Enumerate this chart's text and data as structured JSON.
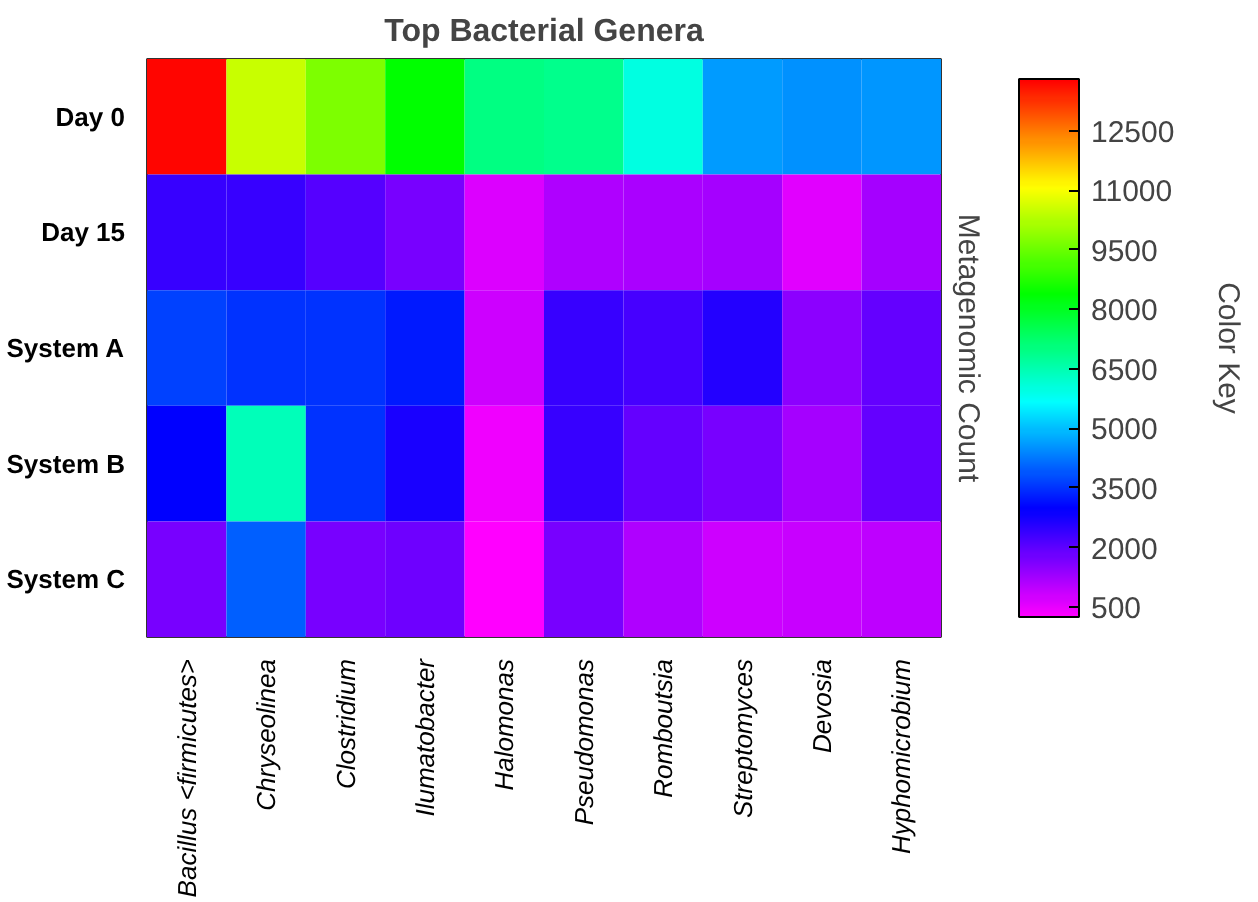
{
  "chart_data": {
    "type": "heatmap",
    "title": "Top Bacterial Genera",
    "ylabel": "Metagenomic Count",
    "clabel": "Color Key",
    "categories": [
      "Bacillus <firmicutes>",
      "Chryseolinea",
      "Clostridium",
      "Ilumatobacter",
      "Halomonas",
      "Pseudomonas",
      "Romboutsia",
      "Streptomyces",
      "Devosia",
      "Hyphomicrobium"
    ],
    "y_categories": [
      "Day 0",
      "Day 15",
      "System A",
      "System B",
      "System C"
    ],
    "cells": [
      [
        13700,
        10500,
        9700,
        8400,
        7000,
        6900,
        6000,
        4600,
        4500,
        4550
      ],
      [
        2400,
        2400,
        2050,
        1700,
        650,
        1100,
        1150,
        1250,
        600,
        1250
      ],
      [
        3650,
        3500,
        3500,
        3250,
        800,
        2400,
        2250,
        2600,
        1500,
        1900
      ],
      [
        2950,
        6400,
        3500,
        2700,
        450,
        2400,
        1900,
        1700,
        1250,
        1900
      ],
      [
        1700,
        4000,
        1700,
        1800,
        300,
        1700,
        1100,
        800,
        850,
        950
      ]
    ],
    "clim": [
      250,
      13800
    ],
    "cticks": [
      500,
      2000,
      3500,
      5000,
      6500,
      8000,
      9500,
      11000,
      12500
    ]
  }
}
